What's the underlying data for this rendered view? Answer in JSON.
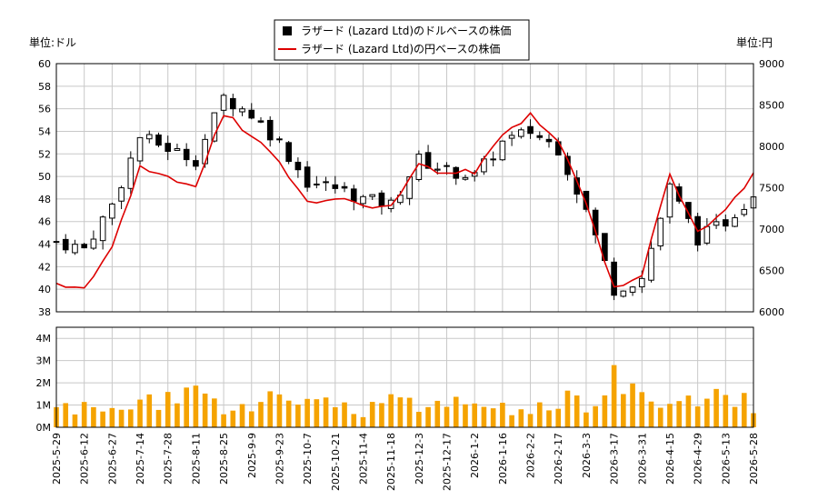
{
  "legend": {
    "usd_label": "ラザード (Lazard Ltd)のドルベースの株価",
    "jpy_label": "ラザード (Lazard Ltd)の円ベースの株価"
  },
  "units": {
    "left": "単位:ドル",
    "right": "単位:円"
  },
  "colors": {
    "candle": "#000000",
    "jpy_line": "#dd0000",
    "volume": "#f5a300",
    "grid": "#c8c8c8"
  },
  "chart_data": [
    {
      "type": "candlestick",
      "title": "",
      "series": [
        {
          "name": "ラザード (Lazard Ltd)のドルベースの株価",
          "axis": "left"
        },
        {
          "name": "ラザード (Lazard Ltd)の円ベースの株価",
          "axis": "right",
          "style": "line"
        }
      ],
      "ylim_left": [
        38,
        60
      ],
      "yticks_left": [
        "38",
        "40",
        "42",
        "44",
        "46",
        "48",
        "50",
        "52",
        "54",
        "56",
        "58",
        "60"
      ],
      "ylim_right": [
        6000,
        9000
      ],
      "yticks_right": [
        "6000",
        "6500",
        "7000",
        "7500",
        "8000",
        "8500",
        "9000"
      ],
      "x_dates": [
        "2025-5-29",
        "2025-6-12",
        "2025-6-27",
        "2025-7-14",
        "2025-7-28",
        "2025-8-11",
        "2025-8-25",
        "2025-9-9",
        "2025-9-23",
        "2025-10-7",
        "2025-10-21",
        "2025-11-4",
        "2025-11-18",
        "2025-12-3",
        "2025-12-17",
        "2026-1-2",
        "2026-1-16",
        "2026-2-2",
        "2026-2-17",
        "2026-3-3",
        "2026-3-17",
        "2026-3-31",
        "2026-4-15",
        "2026-4-29",
        "2026-5-13",
        "2026-5-28"
      ],
      "usd_close_approx": [
        44.2,
        43.6,
        47.5,
        53.5,
        52.5,
        51.5,
        57.0,
        55.5,
        53.0,
        49.5,
        49.0,
        48.0,
        47.5,
        51.5,
        50.5,
        50.0,
        53.0,
        54.0,
        52.5,
        47.0,
        40.0,
        41.0,
        49.0,
        44.5,
        46.0,
        48.5
      ],
      "jpy_close_approx": [
        6350,
        6250,
        6800,
        7750,
        7600,
        7550,
        8400,
        8150,
        7850,
        7300,
        7350,
        7300,
        7250,
        7800,
        7650,
        7700,
        8150,
        8400,
        8050,
        7300,
        6300,
        6450,
        7700,
        6950,
        7250,
        7650
      ],
      "grid": true,
      "legend_position": "top-center"
    },
    {
      "type": "bar",
      "title": "",
      "series": [
        {
          "name": "",
          "values_approx_M": [
            0.9,
            0.8,
            1.0,
            1.1,
            1.2,
            1.3,
            1.0,
            1.3,
            1.1,
            1.1,
            1.0,
            0.8,
            1.4,
            1.2,
            1.0,
            0.9,
            0.8,
            1.0,
            1.3,
            1.1,
            2.0,
            1.3,
            1.1,
            1.5,
            1.3,
            1.0
          ]
        }
      ],
      "ylim": [
        0,
        4500000
      ],
      "yticks": [
        "0M",
        "1M",
        "2M",
        "3M",
        "4M"
      ],
      "grid": true
    }
  ]
}
